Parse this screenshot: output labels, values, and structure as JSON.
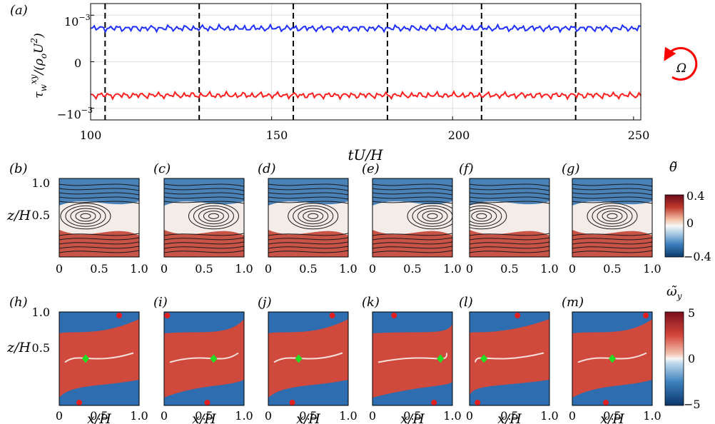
{
  "colors": {
    "blue_line": "#1f2fff",
    "red_line": "#ff1f1f",
    "rotation_arrow": "#ff0000",
    "warm": "#c0392b",
    "cool": "#2c6fae",
    "marker_red": "#e02020",
    "marker_green": "#22dd22"
  },
  "chart_data": [
    {
      "type": "line",
      "panel_label": "(a)",
      "xlabel": "tU/H",
      "ylabel": "τ_w^{xy}/(ρ_o U^2)",
      "xlim": [
        100,
        252
      ],
      "ylim": [
        -0.00125,
        0.00125
      ],
      "x_ticks": [
        "100",
        "150",
        "200",
        "250"
      ],
      "y_ticks": [
        "10^{-3}",
        "0",
        "-10^{-3}"
      ],
      "grid": true,
      "vertical_dashed_lines_x": [
        104,
        130,
        156,
        182,
        208,
        234
      ],
      "series": [
        {
          "color": "blue",
          "mean": 0.00072,
          "x_range": [
            100,
            252
          ]
        },
        {
          "color": "red",
          "mean": -0.00072,
          "x_range": [
            100,
            252
          ]
        }
      ],
      "annotation": "Ω"
    },
    {
      "type": "heatmap",
      "panel_labels": [
        "(b)",
        "(c)",
        "(d)",
        "(e)",
        "(f)",
        "(g)"
      ],
      "xlabel": "",
      "ylabel": "z/H",
      "x_ticks": [
        "0",
        "0.5",
        "1.0"
      ],
      "y_ticks": [
        "0.5",
        "1.0"
      ],
      "colorbar_label": "θ̃",
      "colorbar_ticks": [
        "0.4",
        "0",
        "−0.4"
      ],
      "colorbar_range": [
        -0.4,
        0.4
      ],
      "vortex_centers_x": [
        0.33,
        0.62,
        0.56,
        0.75,
        0.15,
        0.5
      ],
      "vortex_center_z": 0.52
    },
    {
      "type": "heatmap",
      "panel_labels": [
        "(h)",
        "(i)",
        "(j)",
        "(k)",
        "(l)",
        "(m)"
      ],
      "xlabel": "x/H",
      "ylabel": "z/H",
      "x_ticks": [
        "0",
        "0.5",
        "1.0"
      ],
      "y_ticks": [
        "0.5",
        "1.0"
      ],
      "colorbar_label": "ω̃_y",
      "colorbar_ticks": [
        "5",
        "0",
        "−5"
      ],
      "colorbar_range": [
        -5,
        5
      ],
      "green_markers_x": [
        0.33,
        0.62,
        0.38,
        0.85,
        0.18,
        0.5
      ],
      "green_marker_z": 0.5
    }
  ]
}
